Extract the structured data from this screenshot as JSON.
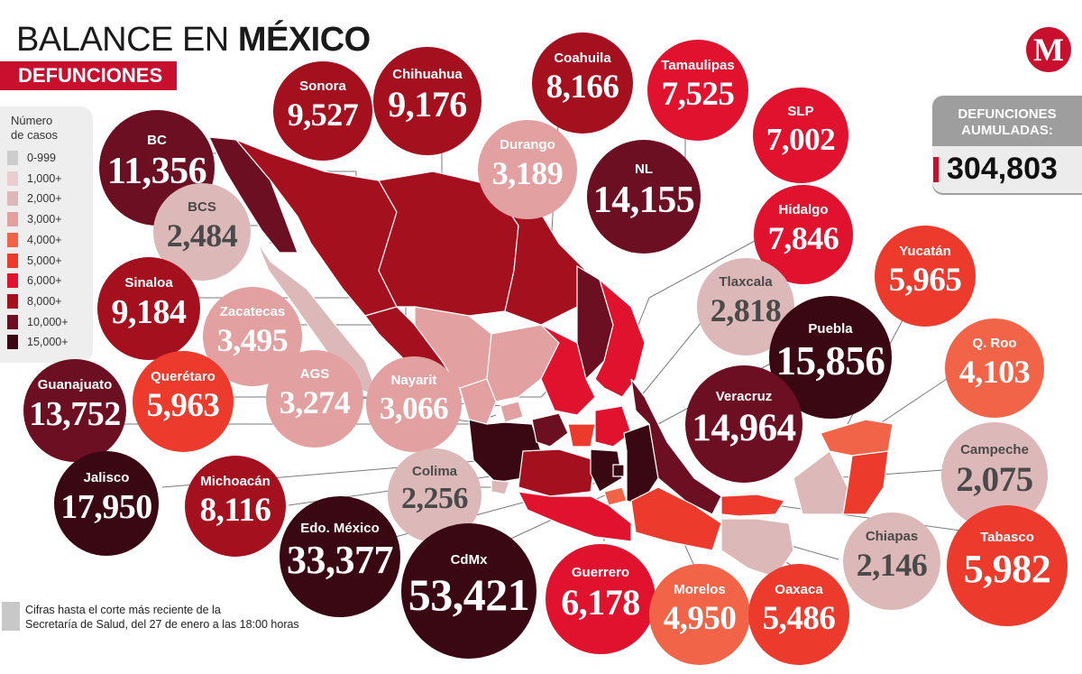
{
  "header": {
    "title_prefix": "BALANCE EN ",
    "title_emphasis": "MÉXICO",
    "subtitle": "DEFUNCIONES",
    "logo_letter": "M"
  },
  "legend": {
    "title": "Número\nde casos",
    "items": [
      {
        "label": "0-999",
        "color": "#cccccc"
      },
      {
        "label": "1,000+",
        "color": "#e9cfcf"
      },
      {
        "label": "2,000+",
        "color": "#ddb8b8"
      },
      {
        "label": "3,000+",
        "color": "#e2a0a0"
      },
      {
        "label": "4,000+",
        "color": "#f26448"
      },
      {
        "label": "5,000+",
        "color": "#ec3a2c"
      },
      {
        "label": "6,000+",
        "color": "#e0122d"
      },
      {
        "label": "8,000+",
        "color": "#a4101e"
      },
      {
        "label": "10,000+",
        "color": "#6d0f22"
      },
      {
        "label": "15,000+",
        "color": "#3a0812"
      }
    ]
  },
  "total": {
    "label": "DEFUNCIONES\nAUMULADAS:",
    "value": "304,803",
    "accent": "#c8102e"
  },
  "note": "Cifras hasta el corte más reciente de la\nSecretaría de Salud, del 27 de enero a las 18:00 horas",
  "states": [
    {
      "name": "BC",
      "value": "11,356",
      "color": "#6d0f22"
    },
    {
      "name": "Sonora",
      "value": "9,527",
      "color": "#a4101e"
    },
    {
      "name": "Chihuahua",
      "value": "9,176",
      "color": "#a4101e"
    },
    {
      "name": "Coahuila",
      "value": "8,166",
      "color": "#a4101e"
    },
    {
      "name": "Tamaulipas",
      "value": "7,525",
      "color": "#e0122d"
    },
    {
      "name": "SLP",
      "value": "7,002",
      "color": "#e0122d"
    },
    {
      "name": "Durango",
      "value": "3,189",
      "color": "#e2a0a0"
    },
    {
      "name": "NL",
      "value": "14,155",
      "color": "#6d0f22"
    },
    {
      "name": "BCS",
      "value": "2,484",
      "color": "#ddb8b8"
    },
    {
      "name": "Hidalgo",
      "value": "7,846",
      "color": "#e0122d"
    },
    {
      "name": "Yucatán",
      "value": "5,965",
      "color": "#ec3a2c"
    },
    {
      "name": "Sinaloa",
      "value": "9,184",
      "color": "#a4101e"
    },
    {
      "name": "Zacatecas",
      "value": "3,495",
      "color": "#e2a0a0"
    },
    {
      "name": "Tlaxcala",
      "value": "2,818",
      "color": "#ddb8b8"
    },
    {
      "name": "Puebla",
      "value": "15,856",
      "color": "#3a0812"
    },
    {
      "name": "Q. Roo",
      "value": "4,103",
      "color": "#f26448"
    },
    {
      "name": "Guanajuato",
      "value": "13,752",
      "color": "#6d0f22"
    },
    {
      "name": "Querétaro",
      "value": "5,963",
      "color": "#ec3a2c"
    },
    {
      "name": "AGS",
      "value": "3,274",
      "color": "#e2a0a0"
    },
    {
      "name": "Nayarit",
      "value": "3,066",
      "color": "#e2a0a0"
    },
    {
      "name": "Veracruz",
      "value": "14,964",
      "color": "#6d0f22"
    },
    {
      "name": "Campeche",
      "value": "2,075",
      "color": "#ddb8b8"
    },
    {
      "name": "Colima",
      "value": "2,256",
      "color": "#ddb8b8"
    },
    {
      "name": "Jalisco",
      "value": "17,950",
      "color": "#3a0812"
    },
    {
      "name": "Michoacán",
      "value": "8,116",
      "color": "#a4101e"
    },
    {
      "name": "Edo. México",
      "value": "33,377",
      "color": "#3a0812"
    },
    {
      "name": "CdMx",
      "value": "53,421",
      "color": "#3a0812"
    },
    {
      "name": "Guerrero",
      "value": "6,178",
      "color": "#e0122d"
    },
    {
      "name": "Chiapas",
      "value": "2,146",
      "color": "#ddb8b8"
    },
    {
      "name": "Morelos",
      "value": "4,950",
      "color": "#f26448"
    },
    {
      "name": "Oaxaca",
      "value": "5,486",
      "color": "#ec3a2c"
    },
    {
      "name": "Tabasco",
      "value": "5,982",
      "color": "#ec3a2c"
    }
  ]
}
